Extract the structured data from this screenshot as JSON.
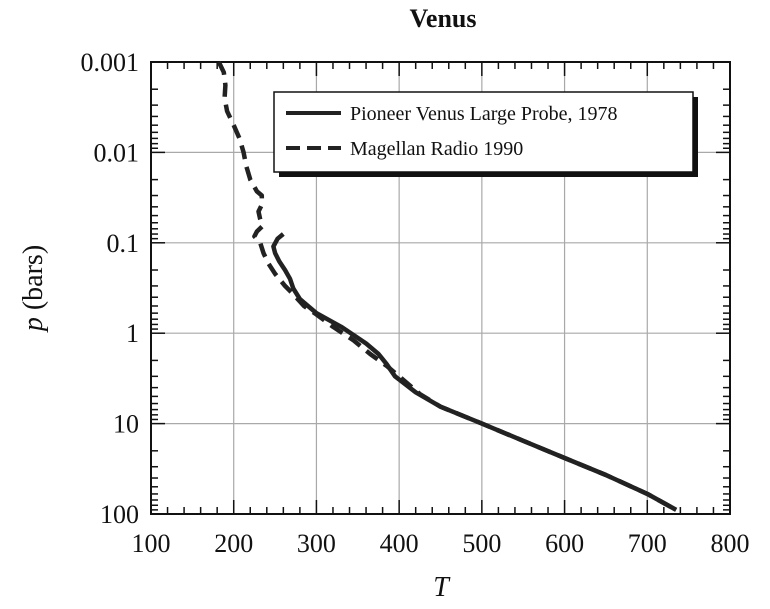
{
  "chart_data": {
    "type": "line",
    "title": "Venus",
    "xlabel": "T",
    "ylabel_var": "p",
    "ylabel_unit": "(bars)",
    "xlim": [
      100,
      800
    ],
    "ylim": [
      0.001,
      100
    ],
    "y_scale": "log",
    "y_inverted": true,
    "grid": true,
    "legend_position": "top-right",
    "x_ticks": [
      100,
      200,
      300,
      400,
      500,
      600,
      700,
      800
    ],
    "x_tick_labels": [
      "100",
      "200",
      "300",
      "400",
      "500",
      "600",
      "700",
      "800"
    ],
    "y_ticks": [
      0.001,
      0.01,
      0.1,
      1,
      10,
      100
    ],
    "y_tick_labels": [
      "0.001",
      "0.01",
      "0.1",
      "1",
      "10",
      "100"
    ],
    "series": [
      {
        "name": "Pioneer Venus Large Probe, 1978",
        "style": "solid",
        "color": "#222222",
        "points": [
          [
            260,
            0.08
          ],
          [
            253,
            0.09
          ],
          [
            248,
            0.11
          ],
          [
            250,
            0.13
          ],
          [
            255,
            0.16
          ],
          [
            262,
            0.2
          ],
          [
            268,
            0.25
          ],
          [
            272,
            0.32
          ],
          [
            280,
            0.42
          ],
          [
            300,
            0.6
          ],
          [
            330,
            0.85
          ],
          [
            360,
            1.3
          ],
          [
            375,
            1.7
          ],
          [
            385,
            2.2
          ],
          [
            395,
            3.0
          ],
          [
            420,
            4.5
          ],
          [
            450,
            6.5
          ],
          [
            500,
            10
          ],
          [
            550,
            15.5
          ],
          [
            600,
            24
          ],
          [
            650,
            37
          ],
          [
            700,
            60
          ],
          [
            735,
            90
          ]
        ]
      },
      {
        "name": "Magellan Radio 1990",
        "style": "dashed",
        "color": "#222222",
        "points": [
          [
            182,
            0.001
          ],
          [
            188,
            0.0013
          ],
          [
            190,
            0.0018
          ],
          [
            189,
            0.0025
          ],
          [
            192,
            0.0035
          ],
          [
            200,
            0.005
          ],
          [
            207,
            0.007
          ],
          [
            212,
            0.01
          ],
          [
            215,
            0.014
          ],
          [
            220,
            0.02
          ],
          [
            228,
            0.027
          ],
          [
            234,
            0.03
          ],
          [
            234,
            0.038
          ],
          [
            230,
            0.045
          ],
          [
            232,
            0.055
          ],
          [
            235,
            0.065
          ],
          [
            228,
            0.075
          ],
          [
            225,
            0.085
          ],
          [
            232,
            0.1
          ],
          [
            236,
            0.13
          ],
          [
            242,
            0.17
          ],
          [
            250,
            0.22
          ],
          [
            262,
            0.3
          ],
          [
            272,
            0.37
          ],
          [
            285,
            0.5
          ],
          [
            300,
            0.62
          ],
          [
            320,
            0.85
          ],
          [
            345,
            1.2
          ],
          [
            365,
            1.7
          ],
          [
            385,
            2.3
          ],
          [
            400,
            3.0
          ],
          [
            425,
            4.7
          ],
          [
            450,
            6.5
          ],
          [
            500,
            10
          ],
          [
            550,
            15.5
          ],
          [
            600,
            24
          ],
          [
            650,
            37
          ],
          [
            700,
            60
          ],
          [
            735,
            90
          ]
        ]
      }
    ]
  }
}
